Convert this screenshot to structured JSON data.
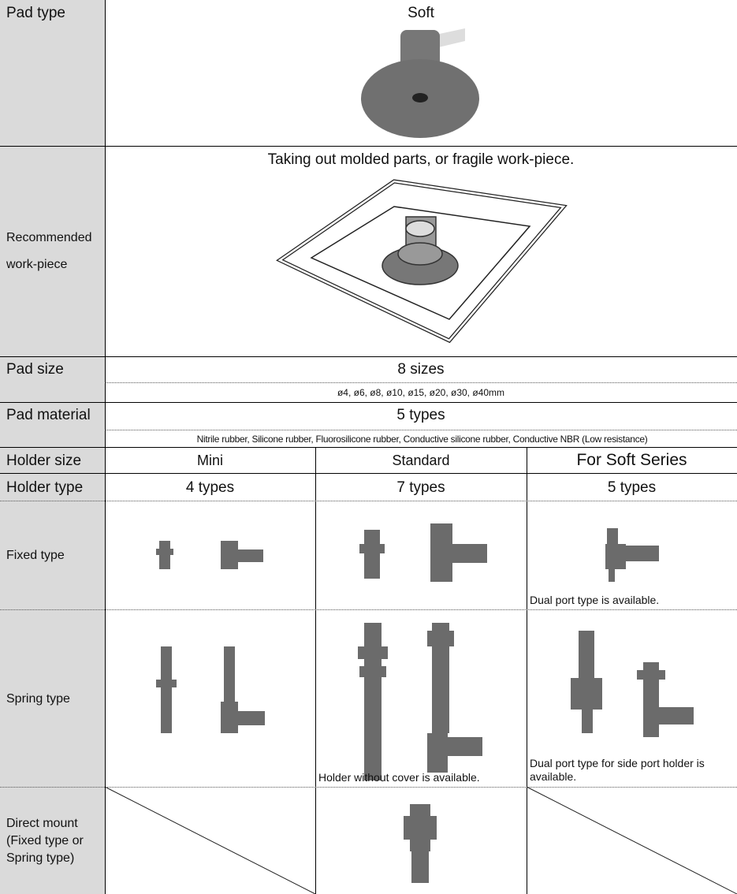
{
  "table": {
    "pad_type": {
      "label": "Pad type",
      "value": "Soft"
    },
    "recommended_work_piece": {
      "label": [
        "Recommended",
        "work-piece"
      ],
      "value": "Taking out molded parts, or fragile work-piece."
    },
    "pad_size": {
      "label": "Pad size",
      "value": "8 sizes",
      "detail": "ø4, ø6, ø8, ø10, ø15, ø20, ø30, ø40mm"
    },
    "pad_material": {
      "label": "Pad material",
      "value": "5 types",
      "detail": "Nitrile rubber, Silicone rubber, Fluorosilicone rubber, Conductive silicone rubber, Conductive NBR (Low resistance)"
    },
    "holder_size": {
      "label": "Holder size",
      "columns": [
        "Mini",
        "Standard",
        "For Soft Series"
      ]
    },
    "holder_type": {
      "label": "Holder type",
      "columns": [
        "4 types",
        "7 types",
        "5 types"
      ]
    },
    "fixed_type": {
      "label": "Fixed type",
      "soft_note": "Dual port type is available."
    },
    "spring_type": {
      "label": "Spring type",
      "standard_note": "Holder without cover is available.",
      "soft_note": "Dual port type for side port holder is available."
    },
    "direct_mount": {
      "label": [
        "Direct mount",
        "(Fixed type or",
        "Spring type)"
      ]
    }
  }
}
